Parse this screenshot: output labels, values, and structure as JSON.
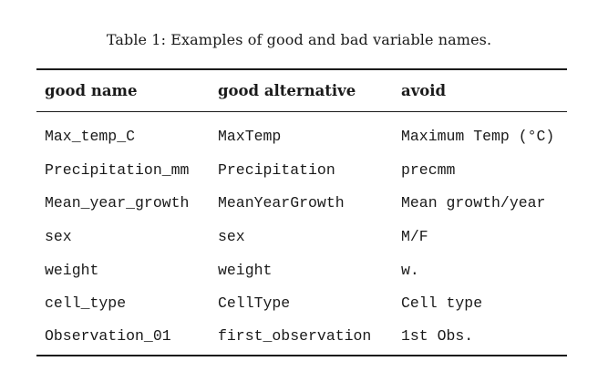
{
  "caption": "Table 1: Examples of good and bad variable names.",
  "table": {
    "headers": [
      "good name",
      "good alternative",
      "avoid"
    ],
    "rows": [
      [
        "Max_temp_C",
        "MaxTemp",
        "Maximum Temp (°C)"
      ],
      [
        "Precipitation_mm",
        "Precipitation",
        "precmm"
      ],
      [
        "Mean_year_growth",
        "MeanYearGrowth",
        "Mean growth/year"
      ],
      [
        "sex",
        "sex",
        "M/F"
      ],
      [
        "weight",
        "weight",
        "w."
      ],
      [
        "cell_type",
        "CellType",
        "Cell type"
      ],
      [
        "Observation_01",
        "first_observation",
        "1st Obs."
      ]
    ]
  }
}
